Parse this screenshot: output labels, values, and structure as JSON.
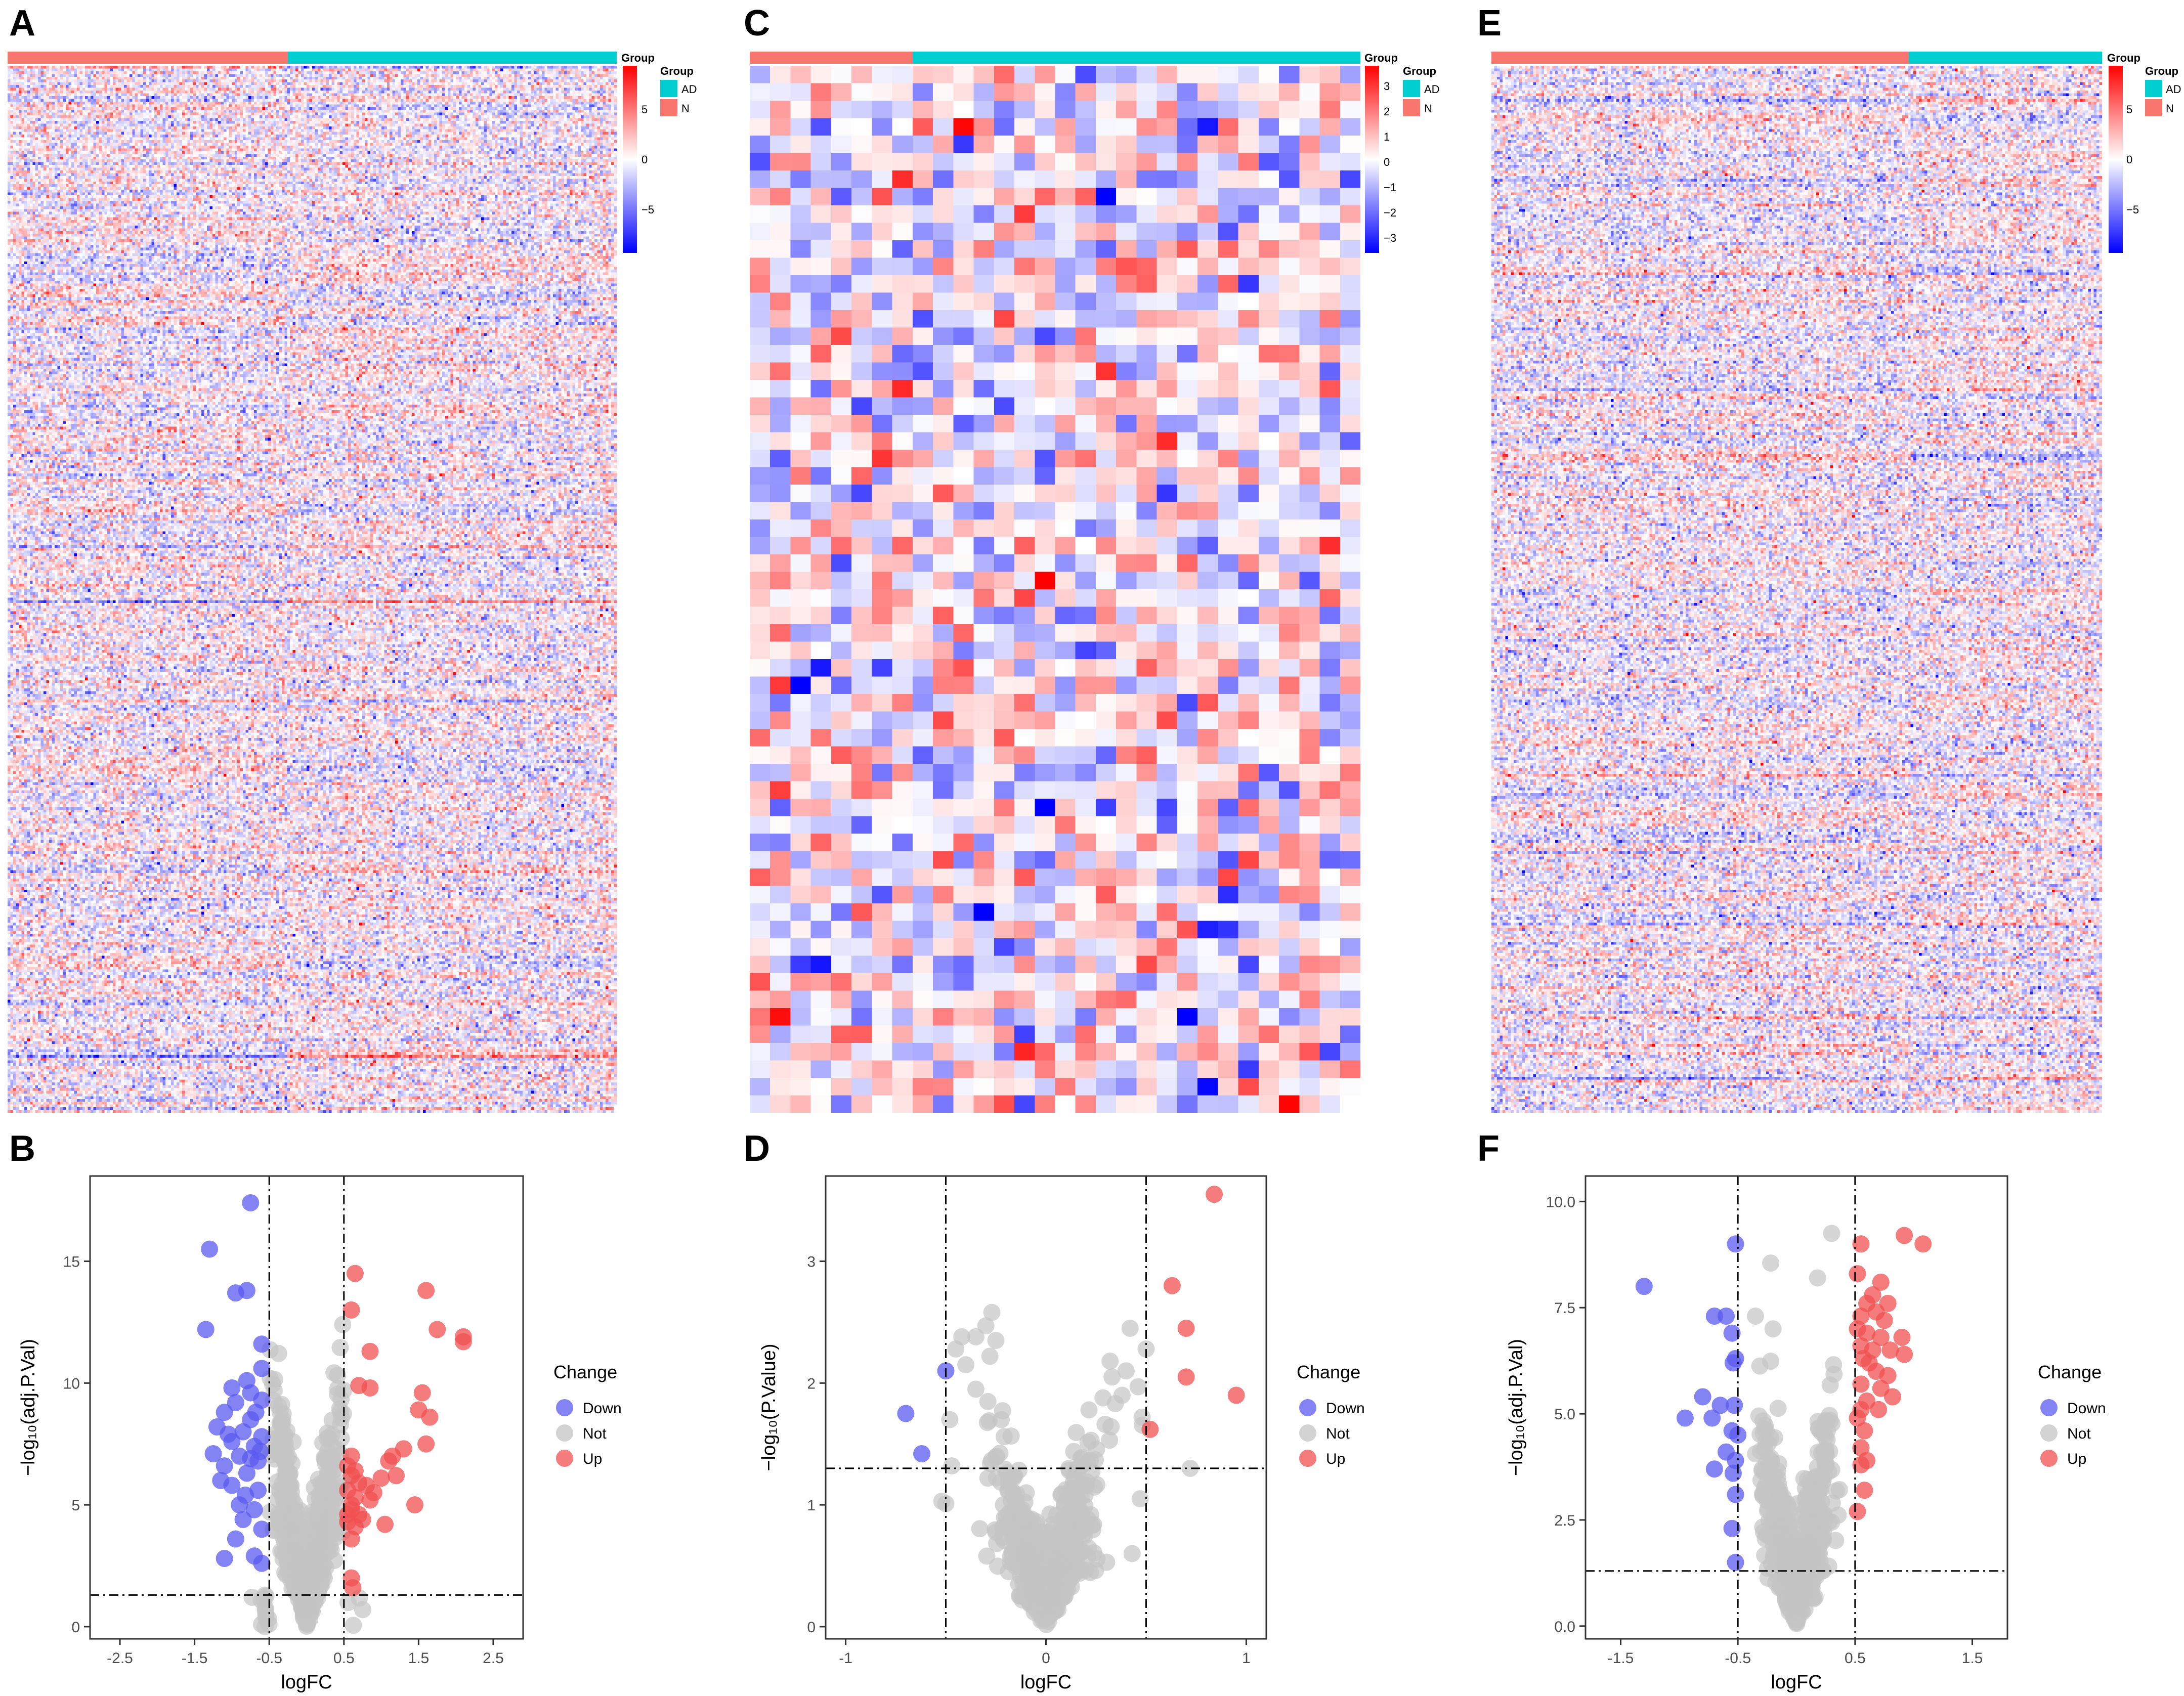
{
  "panel_labels": [
    "A",
    "B",
    "C",
    "D",
    "E",
    "F"
  ],
  "colors": {
    "n_group": "#F8766D",
    "ad_group": "#00CED1",
    "heat_low": "#0000FF",
    "heat_mid": "#FFFFFF",
    "heat_high": "#FF0000",
    "down": "#5A5AF0",
    "not": "#C4C4C4",
    "up": "#F05050"
  },
  "chart_data": [
    {
      "type": "heatmap",
      "panel": "A",
      "annotation_title": "Group",
      "legend_title": "Group",
      "groups": [
        {
          "label": "N",
          "fraction": 0.46
        },
        {
          "label": "AD",
          "fraction": 0.54
        }
      ],
      "legend_groups": [
        "AD",
        "N"
      ],
      "color_scale_ticks": [
        "5",
        "0",
        "−5"
      ],
      "color_scale_range": [
        -8,
        8
      ],
      "rows": 380,
      "cols": 220,
      "cell_value_range": [
        -8,
        8
      ]
    },
    {
      "type": "scatter",
      "panel": "B",
      "xlabel": "logFC",
      "ylabel": "−log₁₀(adj.P.Val)",
      "xlim": [
        -2.9,
        2.9
      ],
      "ylim": [
        -0.5,
        18.5
      ],
      "xticks": [
        "-2.5",
        "-1.5",
        "-0.5",
        "0.5",
        "1.5",
        "2.5"
      ],
      "xtick_values": [
        -2.5,
        -1.5,
        -0.5,
        0.5,
        1.5,
        2.5
      ],
      "yticks": [
        "0",
        "5",
        "10",
        "15"
      ],
      "ytick_values": [
        0,
        5,
        10,
        15
      ],
      "vlines": [
        -0.5,
        0.5
      ],
      "hline": 1.3,
      "legend_title": "Change",
      "legend": [
        "Down",
        "Not",
        "Up"
      ],
      "down": [
        [
          -0.75,
          17.4
        ],
        [
          -1.3,
          15.5
        ],
        [
          -0.8,
          13.8
        ],
        [
          -0.95,
          13.7
        ],
        [
          -1.35,
          12.2
        ],
        [
          -0.6,
          11.6
        ],
        [
          -0.6,
          10.6
        ],
        [
          -0.8,
          10.1
        ],
        [
          -1.0,
          9.8
        ],
        [
          -0.75,
          9.6
        ],
        [
          -0.6,
          9.3
        ],
        [
          -0.95,
          9.2
        ],
        [
          -1.1,
          8.8
        ],
        [
          -0.75,
          8.5
        ],
        [
          -1.2,
          8.2
        ],
        [
          -0.85,
          8.0
        ],
        [
          -0.6,
          7.8
        ],
        [
          -1.0,
          7.6
        ],
        [
          -0.7,
          7.4
        ],
        [
          -1.25,
          7.1
        ],
        [
          -0.9,
          7.0
        ],
        [
          -0.65,
          6.8
        ],
        [
          -1.1,
          6.6
        ],
        [
          -0.8,
          6.3
        ],
        [
          -1.0,
          5.8
        ],
        [
          -0.65,
          5.6
        ],
        [
          -0.9,
          5.0
        ],
        [
          -0.7,
          4.8
        ],
        [
          -0.85,
          4.4
        ],
        [
          -0.6,
          4.0
        ],
        [
          -0.95,
          3.6
        ],
        [
          -1.1,
          2.8
        ],
        [
          -0.7,
          2.9
        ],
        [
          -0.6,
          2.6
        ],
        [
          -1.05,
          7.9
        ],
        [
          -0.75,
          6.9
        ],
        [
          -0.62,
          7.2
        ],
        [
          -1.15,
          6.0
        ],
        [
          -0.68,
          8.8
        ],
        [
          -0.82,
          5.4
        ]
      ],
      "up": [
        [
          0.65,
          14.5
        ],
        [
          1.6,
          13.8
        ],
        [
          0.6,
          13.0
        ],
        [
          1.75,
          12.2
        ],
        [
          2.1,
          11.9
        ],
        [
          2.1,
          11.7
        ],
        [
          0.85,
          11.3
        ],
        [
          0.7,
          9.9
        ],
        [
          0.85,
          9.8
        ],
        [
          1.55,
          9.6
        ],
        [
          1.5,
          8.9
        ],
        [
          1.65,
          8.6
        ],
        [
          1.3,
          7.3
        ],
        [
          1.15,
          7.0
        ],
        [
          1.1,
          6.8
        ],
        [
          1.6,
          7.5
        ],
        [
          0.6,
          7.0
        ],
        [
          0.55,
          6.6
        ],
        [
          0.65,
          6.4
        ],
        [
          0.6,
          6.2
        ],
        [
          0.7,
          5.9
        ],
        [
          0.55,
          5.6
        ],
        [
          0.65,
          5.3
        ],
        [
          0.8,
          5.8
        ],
        [
          0.9,
          5.5
        ],
        [
          1.0,
          6.1
        ],
        [
          0.85,
          5.2
        ],
        [
          0.6,
          5.0
        ],
        [
          0.7,
          4.6
        ],
        [
          0.55,
          4.3
        ],
        [
          0.65,
          4.1
        ],
        [
          0.6,
          3.6
        ],
        [
          1.45,
          5.0
        ],
        [
          1.05,
          4.2
        ],
        [
          0.6,
          2.0
        ],
        [
          0.62,
          1.6
        ],
        [
          0.55,
          4.6
        ],
        [
          0.75,
          4.4
        ],
        [
          0.6,
          4.8
        ],
        [
          1.2,
          6.2
        ]
      ],
      "not_points": 700,
      "not_shape": {
        "spread": 0.22,
        "scale": 1.0,
        "max": 15
      }
    },
    {
      "type": "heatmap",
      "panel": "C",
      "annotation_title": "Group",
      "legend_title": "Group",
      "groups": [
        {
          "label": "N",
          "fraction": 0.267
        },
        {
          "label": "AD",
          "fraction": 0.733
        }
      ],
      "legend_groups": [
        "AD",
        "N"
      ],
      "color_scale_ticks": [
        "3",
        "2",
        "1",
        "0",
        "−1",
        "−2",
        "−3"
      ],
      "color_scale_range": [
        -3.5,
        3.5
      ],
      "rows": 60,
      "cols": 30,
      "cell_value_range": [
        -3.5,
        3.5
      ]
    },
    {
      "type": "scatter",
      "panel": "D",
      "xlabel": "logFC",
      "ylabel": "−log₁₀(P.Value)",
      "xlim": [
        -1.1,
        1.1
      ],
      "ylim": [
        -0.1,
        3.7
      ],
      "xticks": [
        "-1",
        "0",
        "1"
      ],
      "xtick_values": [
        -1,
        0,
        1
      ],
      "yticks": [
        "0",
        "1",
        "2",
        "3"
      ],
      "ytick_values": [
        0,
        1,
        2,
        3
      ],
      "vlines": [
        -0.5,
        0.5
      ],
      "hline": 1.3,
      "legend_title": "Change",
      "legend": [
        "Down",
        "Not",
        "Up"
      ],
      "down": [
        [
          -0.5,
          2.1
        ],
        [
          -0.7,
          1.75
        ],
        [
          -0.62,
          1.42
        ]
      ],
      "up": [
        [
          0.84,
          3.55
        ],
        [
          0.63,
          2.8
        ],
        [
          0.7,
          2.45
        ],
        [
          0.7,
          2.05
        ],
        [
          0.95,
          1.9
        ],
        [
          0.52,
          1.62
        ]
      ],
      "grey": [
        [
          -0.27,
          2.58
        ],
        [
          -0.3,
          2.47
        ],
        [
          -0.35,
          2.38
        ],
        [
          -0.42,
          2.38
        ],
        [
          -0.25,
          2.35
        ],
        [
          -0.45,
          2.28
        ],
        [
          -0.28,
          2.22
        ],
        [
          -0.4,
          2.15
        ],
        [
          0.42,
          2.45
        ],
        [
          0.5,
          2.28
        ],
        [
          0.32,
          2.18
        ],
        [
          0.4,
          2.1
        ],
        [
          0.33,
          2.05
        ],
        [
          0.46,
          1.97
        ],
        [
          0.38,
          1.9
        ],
        [
          -0.35,
          1.95
        ],
        [
          -0.48,
          1.7
        ],
        [
          0.48,
          1.72
        ],
        [
          -0.47,
          1.32
        ],
        [
          0.72,
          1.3
        ],
        [
          0.43,
          0.6
        ],
        [
          -0.52,
          1.03
        ],
        [
          -0.5,
          1.01
        ],
        [
          0.47,
          1.05
        ]
      ],
      "not_points": 650,
      "not_shape": {
        "spread": 0.12,
        "scale": 0.25,
        "max": 1.9
      }
    },
    {
      "type": "heatmap",
      "panel": "E",
      "annotation_title": "Group",
      "legend_title": "Group",
      "groups": [
        {
          "label": "N",
          "fraction": 0.685
        },
        {
          "label": "AD",
          "fraction": 0.315
        }
      ],
      "legend_groups": [
        "AD",
        "N"
      ],
      "color_scale_ticks": [
        "5",
        "0",
        "−5"
      ],
      "color_scale_range": [
        -8,
        8
      ],
      "rows": 380,
      "cols": 220,
      "cell_value_range": [
        -8,
        8
      ]
    },
    {
      "type": "scatter",
      "panel": "F",
      "xlabel": "logFC",
      "ylabel": "−log₁₀(adj.P.Val)",
      "xlim": [
        -1.8,
        1.8
      ],
      "ylim": [
        -0.3,
        10.6
      ],
      "xticks": [
        "-1.5",
        "-0.5",
        "0.5",
        "1.5"
      ],
      "xtick_values": [
        -1.5,
        -0.5,
        0.5,
        1.5
      ],
      "yticks": [
        "0.0",
        "2.5",
        "5.0",
        "7.5",
        "10.0"
      ],
      "ytick_values": [
        0,
        2.5,
        5,
        7.5,
        10
      ],
      "vlines": [
        -0.5,
        0.5
      ],
      "hline": 1.3,
      "legend_title": "Change",
      "legend": [
        "Down",
        "Not",
        "Up"
      ],
      "down": [
        [
          -0.52,
          9.0
        ],
        [
          -1.3,
          8.0
        ],
        [
          -0.7,
          7.3
        ],
        [
          -0.6,
          7.3
        ],
        [
          -0.55,
          6.9
        ],
        [
          -0.52,
          6.3
        ],
        [
          -0.54,
          6.2
        ],
        [
          -0.8,
          5.4
        ],
        [
          -0.65,
          5.2
        ],
        [
          -0.53,
          5.2
        ],
        [
          -0.95,
          4.9
        ],
        [
          -0.72,
          4.9
        ],
        [
          -0.55,
          4.6
        ],
        [
          -0.5,
          4.5
        ],
        [
          -0.6,
          4.1
        ],
        [
          -0.52,
          3.9
        ],
        [
          -0.7,
          3.7
        ],
        [
          -0.54,
          3.6
        ],
        [
          -0.52,
          3.1
        ],
        [
          -0.55,
          2.3
        ],
        [
          -0.52,
          1.5
        ]
      ],
      "up": [
        [
          0.92,
          9.2
        ],
        [
          1.08,
          9.0
        ],
        [
          0.55,
          9.0
        ],
        [
          0.52,
          8.3
        ],
        [
          0.72,
          8.1
        ],
        [
          0.65,
          7.8
        ],
        [
          0.78,
          7.6
        ],
        [
          0.6,
          7.6
        ],
        [
          0.68,
          7.4
        ],
        [
          0.55,
          7.3
        ],
        [
          0.75,
          7.2
        ],
        [
          0.52,
          7.0
        ],
        [
          0.6,
          6.9
        ],
        [
          0.72,
          6.8
        ],
        [
          0.9,
          6.8
        ],
        [
          0.55,
          6.6
        ],
        [
          0.65,
          6.5
        ],
        [
          0.8,
          6.5
        ],
        [
          0.92,
          6.4
        ],
        [
          0.57,
          6.3
        ],
        [
          0.62,
          6.2
        ],
        [
          0.68,
          6.0
        ],
        [
          0.78,
          5.9
        ],
        [
          0.55,
          5.7
        ],
        [
          0.72,
          5.6
        ],
        [
          0.82,
          5.4
        ],
        [
          0.6,
          5.3
        ],
        [
          0.7,
          5.1
        ],
        [
          0.55,
          5.1
        ],
        [
          0.52,
          4.9
        ],
        [
          0.58,
          4.6
        ],
        [
          0.55,
          4.2
        ],
        [
          0.6,
          3.9
        ],
        [
          0.55,
          3.8
        ],
        [
          0.58,
          3.2
        ],
        [
          0.52,
          2.7
        ]
      ],
      "grey": [
        [
          0.3,
          9.25
        ],
        [
          0.18,
          8.2
        ],
        [
          -0.22,
          8.55
        ],
        [
          -0.35,
          7.3
        ],
        [
          -0.2,
          7.0
        ]
      ],
      "not_points": 750,
      "not_shape": {
        "spread": 0.14,
        "scale": 0.7,
        "max": 8.5
      }
    }
  ]
}
